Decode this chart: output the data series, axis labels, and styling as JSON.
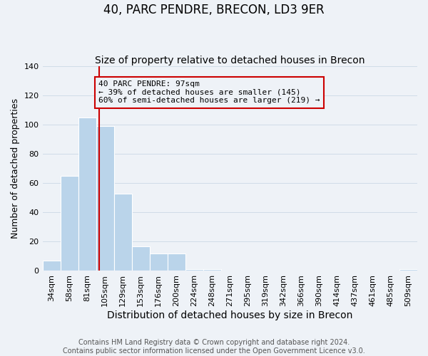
{
  "title": "40, PARC PENDRE, BRECON, LD3 9ER",
  "subtitle": "Size of property relative to detached houses in Brecon",
  "xlabel": "Distribution of detached houses by size in Brecon",
  "ylabel": "Number of detached properties",
  "bar_labels": [
    "34sqm",
    "58sqm",
    "81sqm",
    "105sqm",
    "129sqm",
    "153sqm",
    "176sqm",
    "200sqm",
    "224sqm",
    "248sqm",
    "271sqm",
    "295sqm",
    "319sqm",
    "342sqm",
    "366sqm",
    "390sqm",
    "414sqm",
    "437sqm",
    "461sqm",
    "485sqm",
    "509sqm"
  ],
  "bar_values": [
    7,
    65,
    105,
    99,
    53,
    17,
    12,
    12,
    1,
    1,
    0,
    0,
    0,
    0,
    0,
    0,
    0,
    0,
    0,
    0,
    1
  ],
  "bar_color": "#bad4ea",
  "bar_edge_color": "#bad4ea",
  "grid_color": "#d0dce8",
  "background_color": "#eef2f7",
  "annotation_title": "40 PARC PENDRE: 97sqm",
  "annotation_line1": "← 39% of detached houses are smaller (145)",
  "annotation_line2": "60% of semi-detached houses are larger (219) →",
  "footer_line1": "Contains HM Land Registry data © Crown copyright and database right 2024.",
  "footer_line2": "Contains public sector information licensed under the Open Government Licence v3.0.",
  "ylim": [
    0,
    140
  ],
  "title_fontsize": 12,
  "subtitle_fontsize": 10,
  "xlabel_fontsize": 10,
  "ylabel_fontsize": 9,
  "tick_fontsize": 8,
  "footer_fontsize": 7,
  "red_line_index": 2.67
}
